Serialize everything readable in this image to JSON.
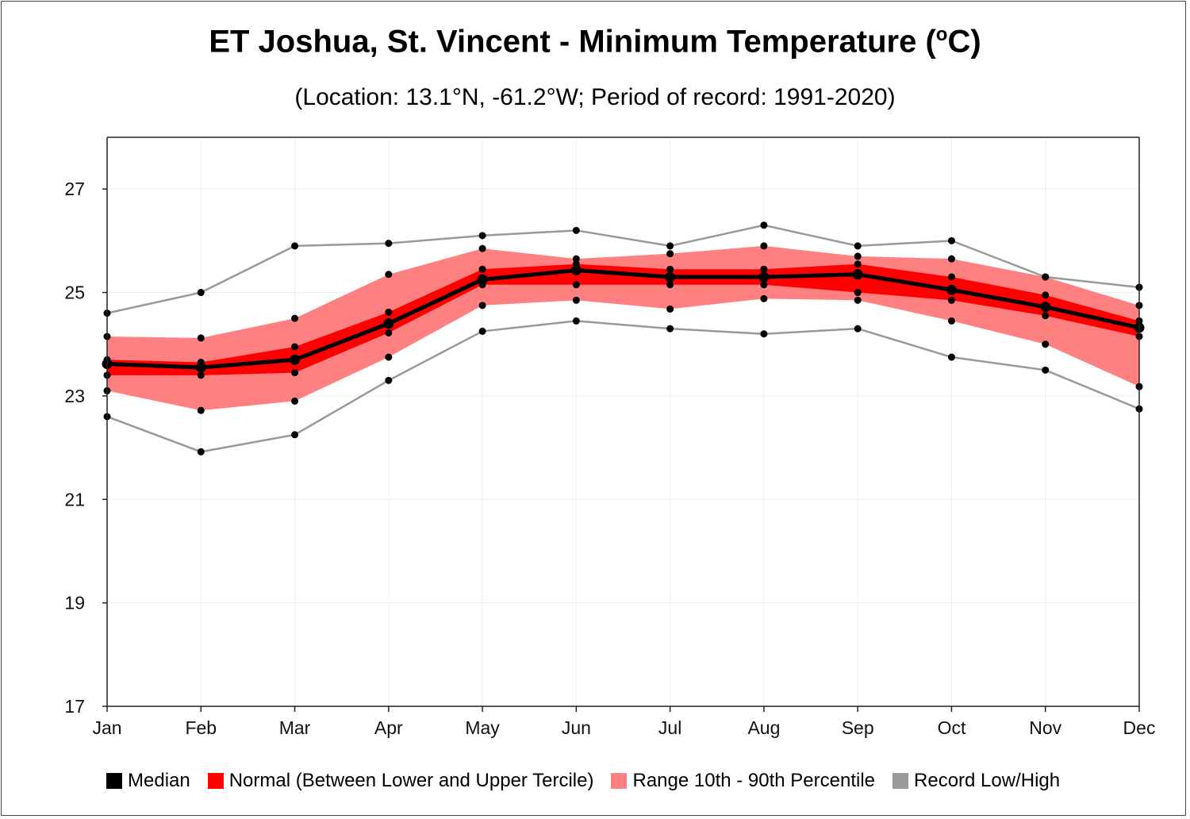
{
  "chart_data": {
    "type": "line",
    "title": "ET Joshua, St. Vincent - Minimum Temperature (",
    "title_sup": "o",
    "title_suffix": "C)",
    "subtitle": "(Location: 13.1°N, -61.2°W; Period of record: 1991-2020)",
    "xlabel": "",
    "ylabel": "",
    "categories": [
      "Jan",
      "Feb",
      "Mar",
      "Apr",
      "May",
      "Jun",
      "Jul",
      "Aug",
      "Sep",
      "Oct",
      "Nov",
      "Dec"
    ],
    "yticks": [
      "17",
      "19",
      "21",
      "23",
      "25",
      "27"
    ],
    "ylim": [
      17,
      28
    ],
    "grid": true,
    "legend_position": "bottom",
    "colors": {
      "median": "#000000",
      "normal": "#ff0000",
      "range": "#ff8080",
      "record": "#999999"
    },
    "series": {
      "record_high": [
        24.6,
        25.0,
        25.9,
        25.95,
        26.1,
        26.2,
        25.9,
        26.3,
        25.9,
        26.0,
        25.3,
        25.1
      ],
      "p90": [
        24.15,
        24.12,
        24.5,
        25.35,
        25.85,
        25.65,
        25.75,
        25.9,
        25.7,
        25.65,
        25.3,
        24.75
      ],
      "upper_tercile": [
        23.7,
        23.65,
        23.95,
        24.62,
        25.45,
        25.55,
        25.45,
        25.45,
        25.55,
        25.3,
        24.95,
        24.45
      ],
      "median": [
        23.62,
        23.55,
        23.7,
        24.4,
        25.25,
        25.43,
        25.3,
        25.3,
        25.35,
        25.05,
        24.72,
        24.32
      ],
      "lower_tercile": [
        23.4,
        23.4,
        23.45,
        24.22,
        25.15,
        25.15,
        25.15,
        25.15,
        25.0,
        24.85,
        24.55,
        24.15
      ],
      "p10": [
        23.1,
        22.72,
        22.9,
        23.75,
        24.75,
        24.85,
        24.68,
        24.88,
        24.85,
        24.45,
        24.0,
        23.18
      ],
      "record_low": [
        22.6,
        21.92,
        22.25,
        23.3,
        24.25,
        24.45,
        24.3,
        24.2,
        24.3,
        23.75,
        23.5,
        22.75
      ]
    },
    "legend": [
      {
        "label": "Median",
        "key": "median"
      },
      {
        "label": "Normal (Between Lower and Upper Tercile)",
        "key": "normal"
      },
      {
        "label": "Range 10th - 90th Percentile",
        "key": "range"
      },
      {
        "label": "Record Low/High",
        "key": "record"
      }
    ]
  }
}
